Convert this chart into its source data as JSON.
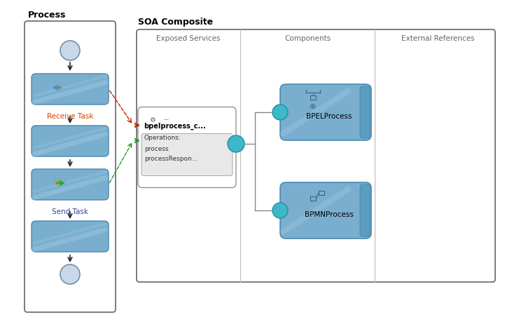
{
  "bg_color": "#ffffff",
  "process_title": "Process",
  "soa_title": "SOA Composite",
  "exposed_services_label": "Exposed Services",
  "components_label": "Components",
  "external_references_label": "External References",
  "receive_task_label": "Receive Task",
  "send_task_label": "Send Task",
  "bpel_label": "BPELProcess",
  "bpmn_label": "BPMNProcess",
  "service_name": "bpelprocess_c...",
  "operations_label": "Operations:",
  "op1": "process",
  "op2": "processRespon...",
  "task_color": "#7aaecf",
  "task_stripe": "#a0c8e0",
  "task_edge": "#4a8ab0",
  "comp_color": "#7aaecf",
  "comp_edge": "#4a8ab0",
  "comp_bar_color": "#5a9dc0",
  "sock_color": "#3cb8c8",
  "sock_edge": "#2090a0",
  "circle_fill": "#c8d8e8",
  "circle_edge": "#7090a8",
  "arrow_color": "#222222",
  "red_dash": "#cc2200",
  "green_dash": "#229922",
  "wire_color": "#888888",
  "gray_text": "#666666",
  "ops_fill": "#e8e8e8",
  "ops_edge": "#aaaaaa"
}
